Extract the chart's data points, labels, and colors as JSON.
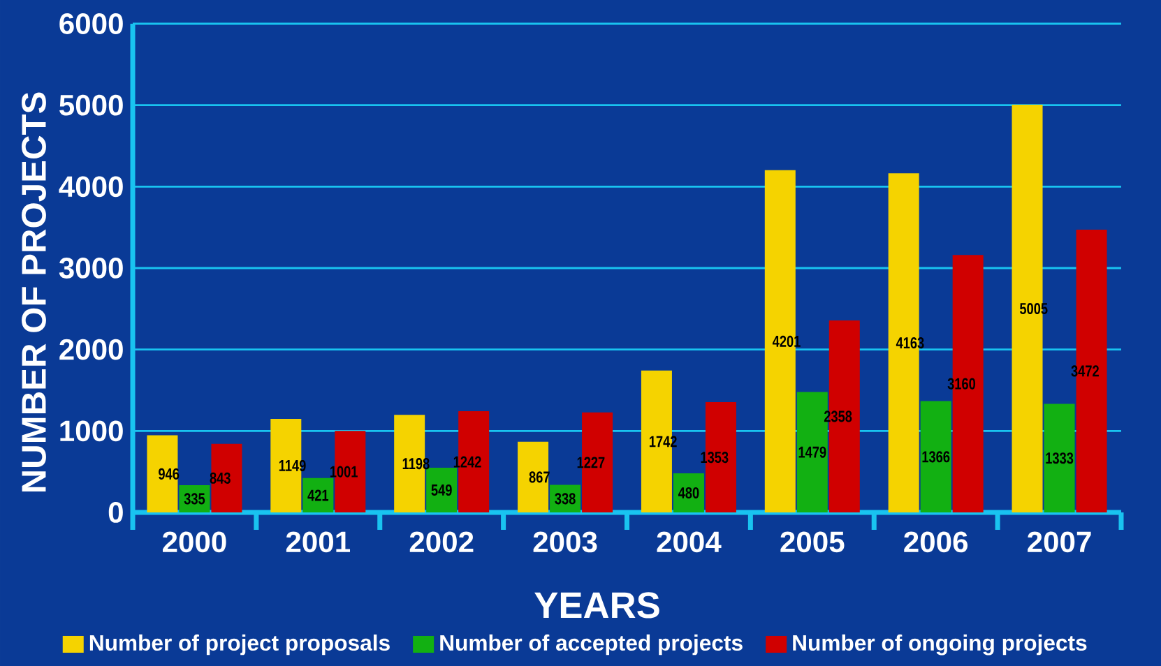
{
  "chart_data": {
    "type": "bar",
    "xlabel": "YEARS",
    "ylabel": "NUMBER OF PROJECTS",
    "categories": [
      "2000",
      "2001",
      "2002",
      "2003",
      "2004",
      "2005",
      "2006",
      "2007"
    ],
    "series": [
      {
        "name": "Number of project proposals",
        "color": "#f5d300",
        "values": [
          946,
          1149,
          1198,
          867,
          1742,
          4201,
          4163,
          5005
        ]
      },
      {
        "name": "Number of accepted projects",
        "color": "#12b012",
        "values": [
          335,
          421,
          549,
          338,
          480,
          1479,
          1366,
          1333
        ]
      },
      {
        "name": "Number of ongoing projects",
        "color": "#d00000",
        "values": [
          843,
          1001,
          1242,
          1227,
          1353,
          2358,
          3160,
          3472
        ]
      }
    ],
    "ylim": [
      0,
      6000
    ],
    "yticks": [
      0,
      1000,
      2000,
      3000,
      4000,
      5000,
      6000
    ],
    "grid": "y",
    "legend": "bottom",
    "data_labels": true
  }
}
